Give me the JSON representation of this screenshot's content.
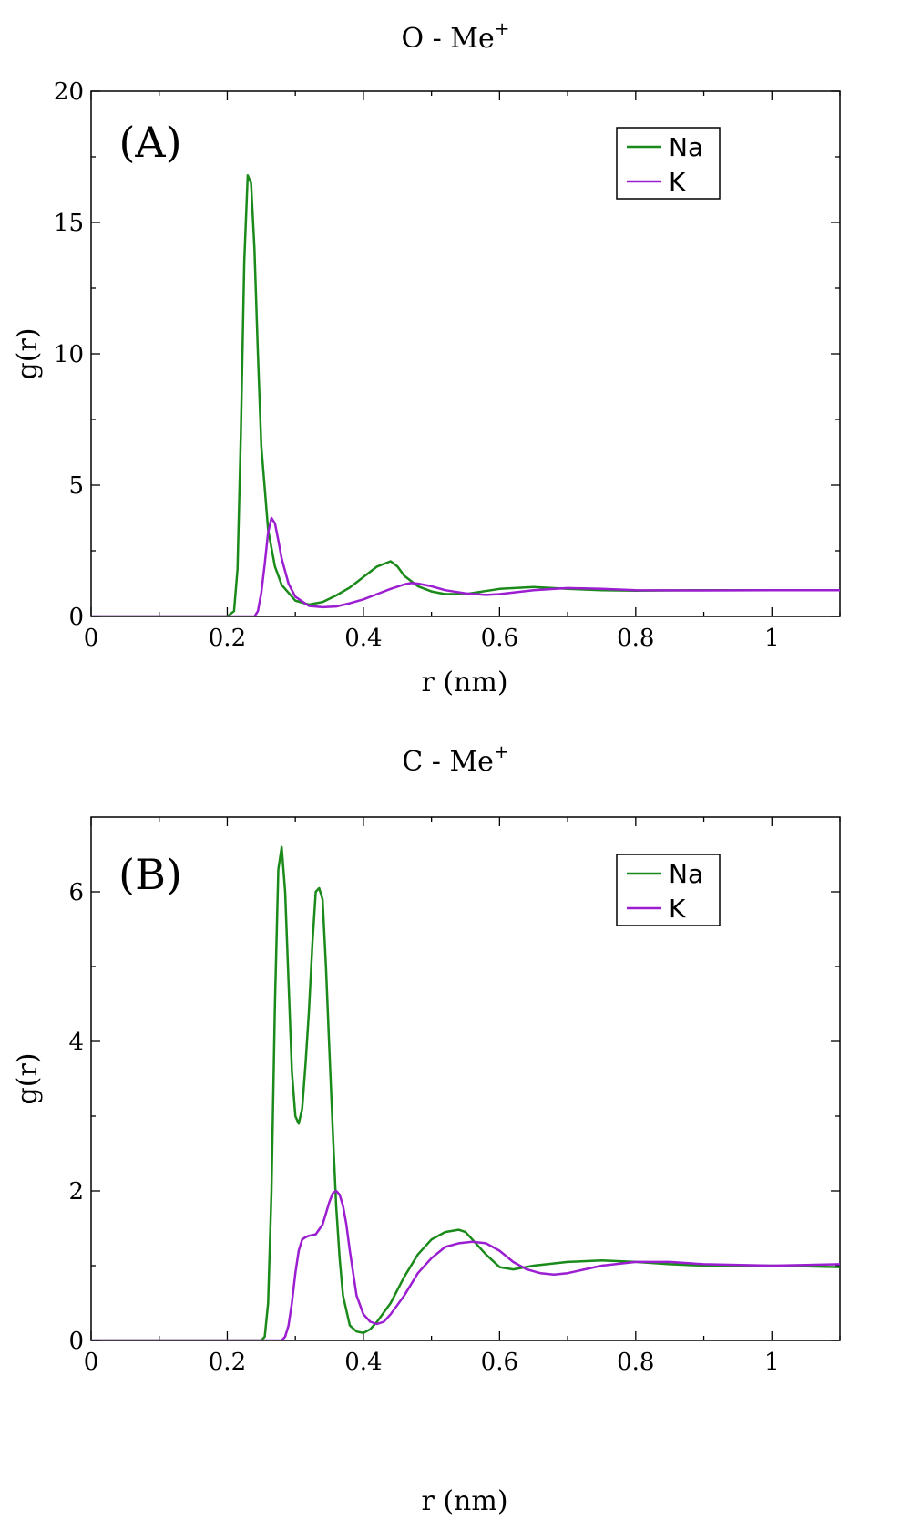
{
  "chart_data": [
    {
      "type": "line",
      "title": "O - Me",
      "title_superscript": "+",
      "panel_label": "(A)",
      "xlabel": "r (nm)",
      "ylabel": "g(r)",
      "xlim": [
        0,
        1.1
      ],
      "ylim": [
        0,
        20
      ],
      "x_ticks": [
        0,
        0.2,
        0.4,
        0.6,
        0.8,
        1
      ],
      "x_tick_labels": [
        "0",
        "0.2",
        "0.4",
        "0.6",
        "0.8",
        "1"
      ],
      "y_ticks": [
        0,
        5,
        10,
        15,
        20
      ],
      "y_tick_labels": [
        "0",
        "5",
        "10",
        "15",
        "20"
      ],
      "legend_position": "top-right",
      "grid": false,
      "series": [
        {
          "name": "Na",
          "color": "#1a8a1a",
          "x": [
            0,
            0.2,
            0.21,
            0.215,
            0.22,
            0.225,
            0.23,
            0.235,
            0.24,
            0.245,
            0.25,
            0.26,
            0.27,
            0.28,
            0.3,
            0.32,
            0.34,
            0.36,
            0.38,
            0.4,
            0.42,
            0.44,
            0.45,
            0.46,
            0.48,
            0.5,
            0.52,
            0.55,
            0.6,
            0.65,
            0.7,
            0.75,
            0.8,
            0.9,
            1.0,
            1.1
          ],
          "y": [
            0,
            0,
            0.2,
            1.8,
            7.0,
            13.5,
            16.8,
            16.5,
            14.0,
            10.0,
            6.5,
            3.3,
            1.9,
            1.2,
            0.6,
            0.45,
            0.55,
            0.8,
            1.1,
            1.5,
            1.9,
            2.1,
            1.9,
            1.55,
            1.15,
            0.95,
            0.85,
            0.85,
            1.05,
            1.12,
            1.05,
            1.0,
            0.98,
            1.0,
            1.0,
            1.0
          ]
        },
        {
          "name": "K",
          "color": "#9b1ed1",
          "x": [
            0,
            0.24,
            0.245,
            0.25,
            0.255,
            0.26,
            0.265,
            0.27,
            0.275,
            0.28,
            0.29,
            0.3,
            0.32,
            0.34,
            0.36,
            0.38,
            0.4,
            0.42,
            0.44,
            0.46,
            0.47,
            0.48,
            0.5,
            0.52,
            0.55,
            0.58,
            0.6,
            0.65,
            0.7,
            0.75,
            0.8,
            0.9,
            1.0,
            1.1
          ],
          "y": [
            0,
            0,
            0.2,
            0.9,
            2.0,
            3.2,
            3.75,
            3.55,
            2.9,
            2.2,
            1.25,
            0.75,
            0.4,
            0.35,
            0.38,
            0.5,
            0.65,
            0.85,
            1.05,
            1.22,
            1.27,
            1.25,
            1.15,
            1.0,
            0.88,
            0.82,
            0.85,
            1.0,
            1.08,
            1.05,
            1.0,
            0.99,
            1.0,
            1.0
          ]
        }
      ]
    },
    {
      "type": "line",
      "title": "C - Me",
      "title_superscript": "+",
      "panel_label": "(B)",
      "xlabel": "r (nm)",
      "ylabel": "g(r)",
      "xlim": [
        0,
        1.1
      ],
      "ylim": [
        0,
        7
      ],
      "x_ticks": [
        0,
        0.2,
        0.4,
        0.6,
        0.8,
        1
      ],
      "x_tick_labels": [
        "0",
        "0.2",
        "0.4",
        "0.6",
        "0.8",
        "1"
      ],
      "y_ticks": [
        0,
        2,
        4,
        6
      ],
      "y_tick_labels": [
        "0",
        "2",
        "4",
        "6"
      ],
      "legend_position": "top-right",
      "grid": false,
      "series": [
        {
          "name": "Na",
          "color": "#1a8a1a",
          "x": [
            0,
            0.25,
            0.255,
            0.26,
            0.265,
            0.27,
            0.275,
            0.28,
            0.285,
            0.29,
            0.295,
            0.3,
            0.305,
            0.31,
            0.315,
            0.32,
            0.325,
            0.33,
            0.335,
            0.34,
            0.345,
            0.35,
            0.355,
            0.36,
            0.365,
            0.37,
            0.38,
            0.39,
            0.4,
            0.41,
            0.42,
            0.44,
            0.46,
            0.48,
            0.5,
            0.52,
            0.54,
            0.55,
            0.56,
            0.58,
            0.6,
            0.62,
            0.65,
            0.7,
            0.75,
            0.8,
            0.85,
            0.9,
            1.0,
            1.1
          ],
          "y": [
            0,
            0,
            0.05,
            0.5,
            2.0,
            4.5,
            6.3,
            6.6,
            6.0,
            4.8,
            3.6,
            3.0,
            2.9,
            3.1,
            3.7,
            4.4,
            5.3,
            6.0,
            6.05,
            5.9,
            5.0,
            3.9,
            2.8,
            1.8,
            1.1,
            0.6,
            0.2,
            0.12,
            0.1,
            0.15,
            0.25,
            0.5,
            0.85,
            1.15,
            1.35,
            1.45,
            1.48,
            1.45,
            1.35,
            1.15,
            0.98,
            0.95,
            1.0,
            1.05,
            1.07,
            1.05,
            1.02,
            1.0,
            1.0,
            0.98
          ]
        },
        {
          "name": "K",
          "color": "#9b1ed1",
          "x": [
            0,
            0.28,
            0.285,
            0.29,
            0.295,
            0.3,
            0.305,
            0.31,
            0.315,
            0.32,
            0.33,
            0.34,
            0.345,
            0.35,
            0.355,
            0.36,
            0.365,
            0.37,
            0.375,
            0.38,
            0.385,
            0.39,
            0.4,
            0.41,
            0.42,
            0.43,
            0.44,
            0.46,
            0.48,
            0.5,
            0.52,
            0.54,
            0.56,
            0.58,
            0.6,
            0.62,
            0.64,
            0.66,
            0.68,
            0.7,
            0.75,
            0.8,
            0.85,
            0.9,
            1.0,
            1.1
          ],
          "y": [
            0,
            0,
            0.05,
            0.2,
            0.5,
            0.9,
            1.2,
            1.35,
            1.38,
            1.4,
            1.42,
            1.55,
            1.7,
            1.85,
            1.97,
            2.0,
            1.95,
            1.8,
            1.55,
            1.2,
            0.9,
            0.6,
            0.35,
            0.25,
            0.22,
            0.25,
            0.35,
            0.6,
            0.9,
            1.1,
            1.25,
            1.3,
            1.32,
            1.3,
            1.2,
            1.05,
            0.95,
            0.9,
            0.88,
            0.9,
            1.0,
            1.05,
            1.05,
            1.02,
            1.0,
            1.02
          ]
        }
      ]
    }
  ]
}
